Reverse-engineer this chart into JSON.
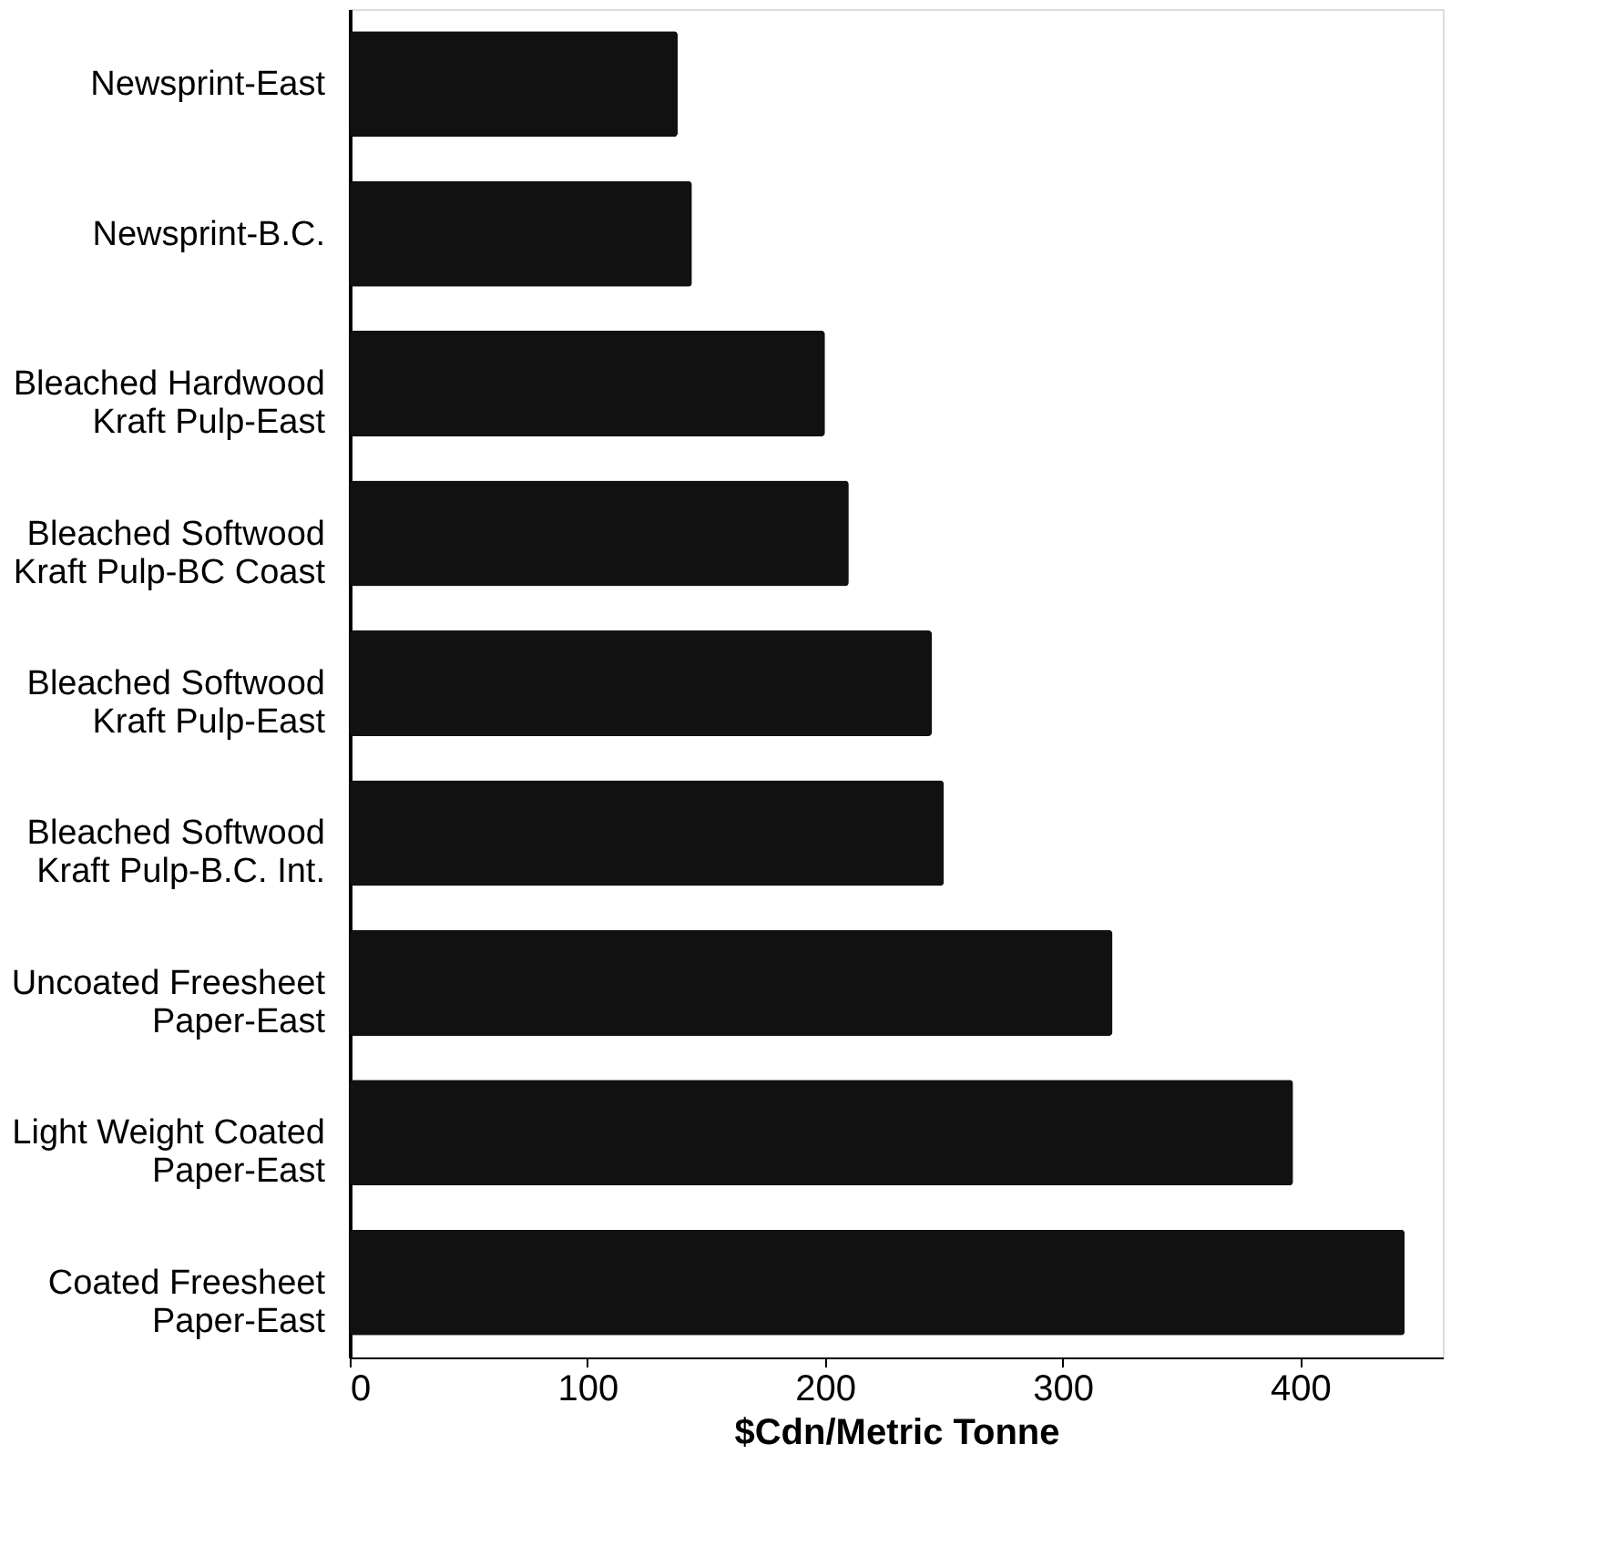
{
  "chart_data": {
    "type": "bar",
    "orientation": "horizontal",
    "xlabel": "$Cdn/Metric Tonne",
    "categories": [
      "Newsprint-East",
      "Newsprint-B.C.",
      "Bleached Hardwood\nKraft Pulp-East",
      "Bleached Softwood\nKraft Pulp-BC Coast",
      "Bleached Softwood\nKraft Pulp-East",
      "Bleached Softwood\nKraft Pulp-B.C. Int.",
      "Uncoated Freesheet\nPaper-East",
      "Light Weight Coated\nPaper-East",
      "Coated Freesheet\nPaper-East"
    ],
    "values": [
      138,
      144,
      200,
      210,
      245,
      250,
      321,
      397,
      444
    ],
    "color": "#111111",
    "xlim": [
      0,
      460
    ],
    "xticks": [
      0,
      100,
      200,
      300,
      400
    ],
    "grid": false
  }
}
